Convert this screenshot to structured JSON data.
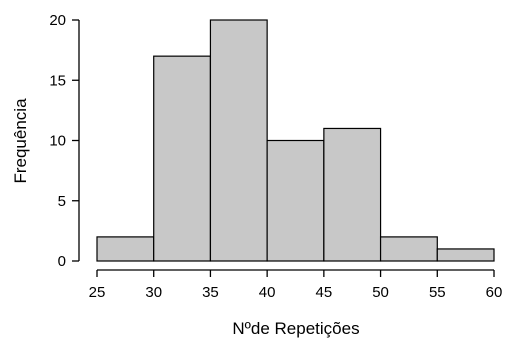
{
  "chart_data": {
    "type": "bar",
    "subtype": "histogram",
    "bins": [
      {
        "start": 25,
        "end": 30,
        "value": 2
      },
      {
        "start": 30,
        "end": 35,
        "value": 17
      },
      {
        "start": 35,
        "end": 40,
        "value": 20
      },
      {
        "start": 40,
        "end": 45,
        "value": 10
      },
      {
        "start": 45,
        "end": 50,
        "value": 11
      },
      {
        "start": 50,
        "end": 55,
        "value": 2
      },
      {
        "start": 55,
        "end": 60,
        "value": 1
      }
    ],
    "xlabel": "Nºde Repetições",
    "ylabel": "Frequência",
    "xlim": [
      25,
      60
    ],
    "ylim": [
      0,
      20
    ],
    "xticks": [
      "25",
      "30",
      "35",
      "40",
      "45",
      "50",
      "55",
      "60"
    ],
    "yticks": [
      "0",
      "5",
      "10",
      "15",
      "20"
    ],
    "bar_color": "#c8c8c8",
    "grid": false
  }
}
